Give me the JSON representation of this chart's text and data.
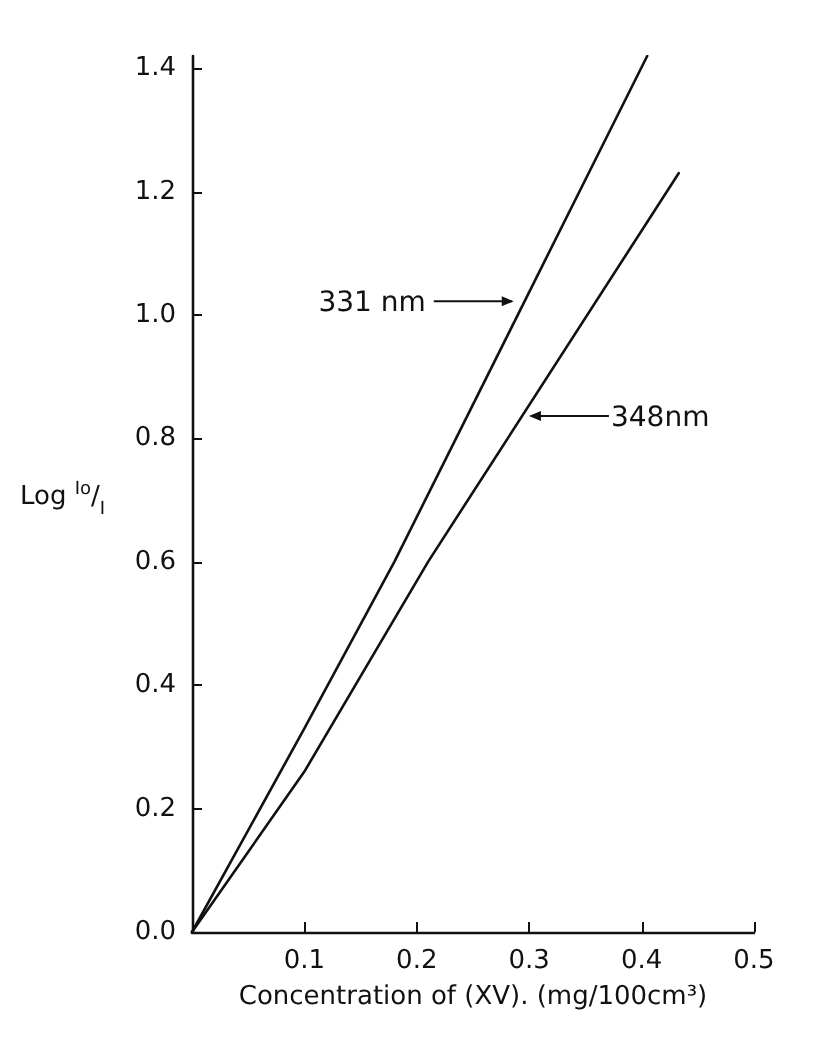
{
  "chart_data": {
    "type": "line",
    "xlabel": "Concentration of (XV). (mg/100cm³)",
    "ylabel": "Log $^{Io}$/$_{I}$",
    "xlim": [
      0,
      0.5
    ],
    "xticks": [
      0.1,
      0.2,
      0.3,
      0.4,
      0.5
    ],
    "ylim": [
      0,
      1.42
    ],
    "yticks": [
      "0.0",
      0.2,
      0.4,
      0.6,
      0.8,
      "1.0",
      1.2,
      1.4
    ],
    "series": [
      {
        "color": "#111111",
        "x": [
          0,
          0.1,
          0.18,
          0.405
        ],
        "values": [
          0,
          0.33,
          0.6,
          1.42
        ]
      },
      {
        "color": "#111111",
        "x": [
          0,
          0.1,
          0.21,
          0.433
        ],
        "values": [
          0,
          0.26,
          0.6,
          1.23
        ]
      }
    ],
    "annotations": [
      "331 nm",
      "348nm"
    ],
    "grid": false,
    "marker": "none",
    "line_style": "solid"
  }
}
